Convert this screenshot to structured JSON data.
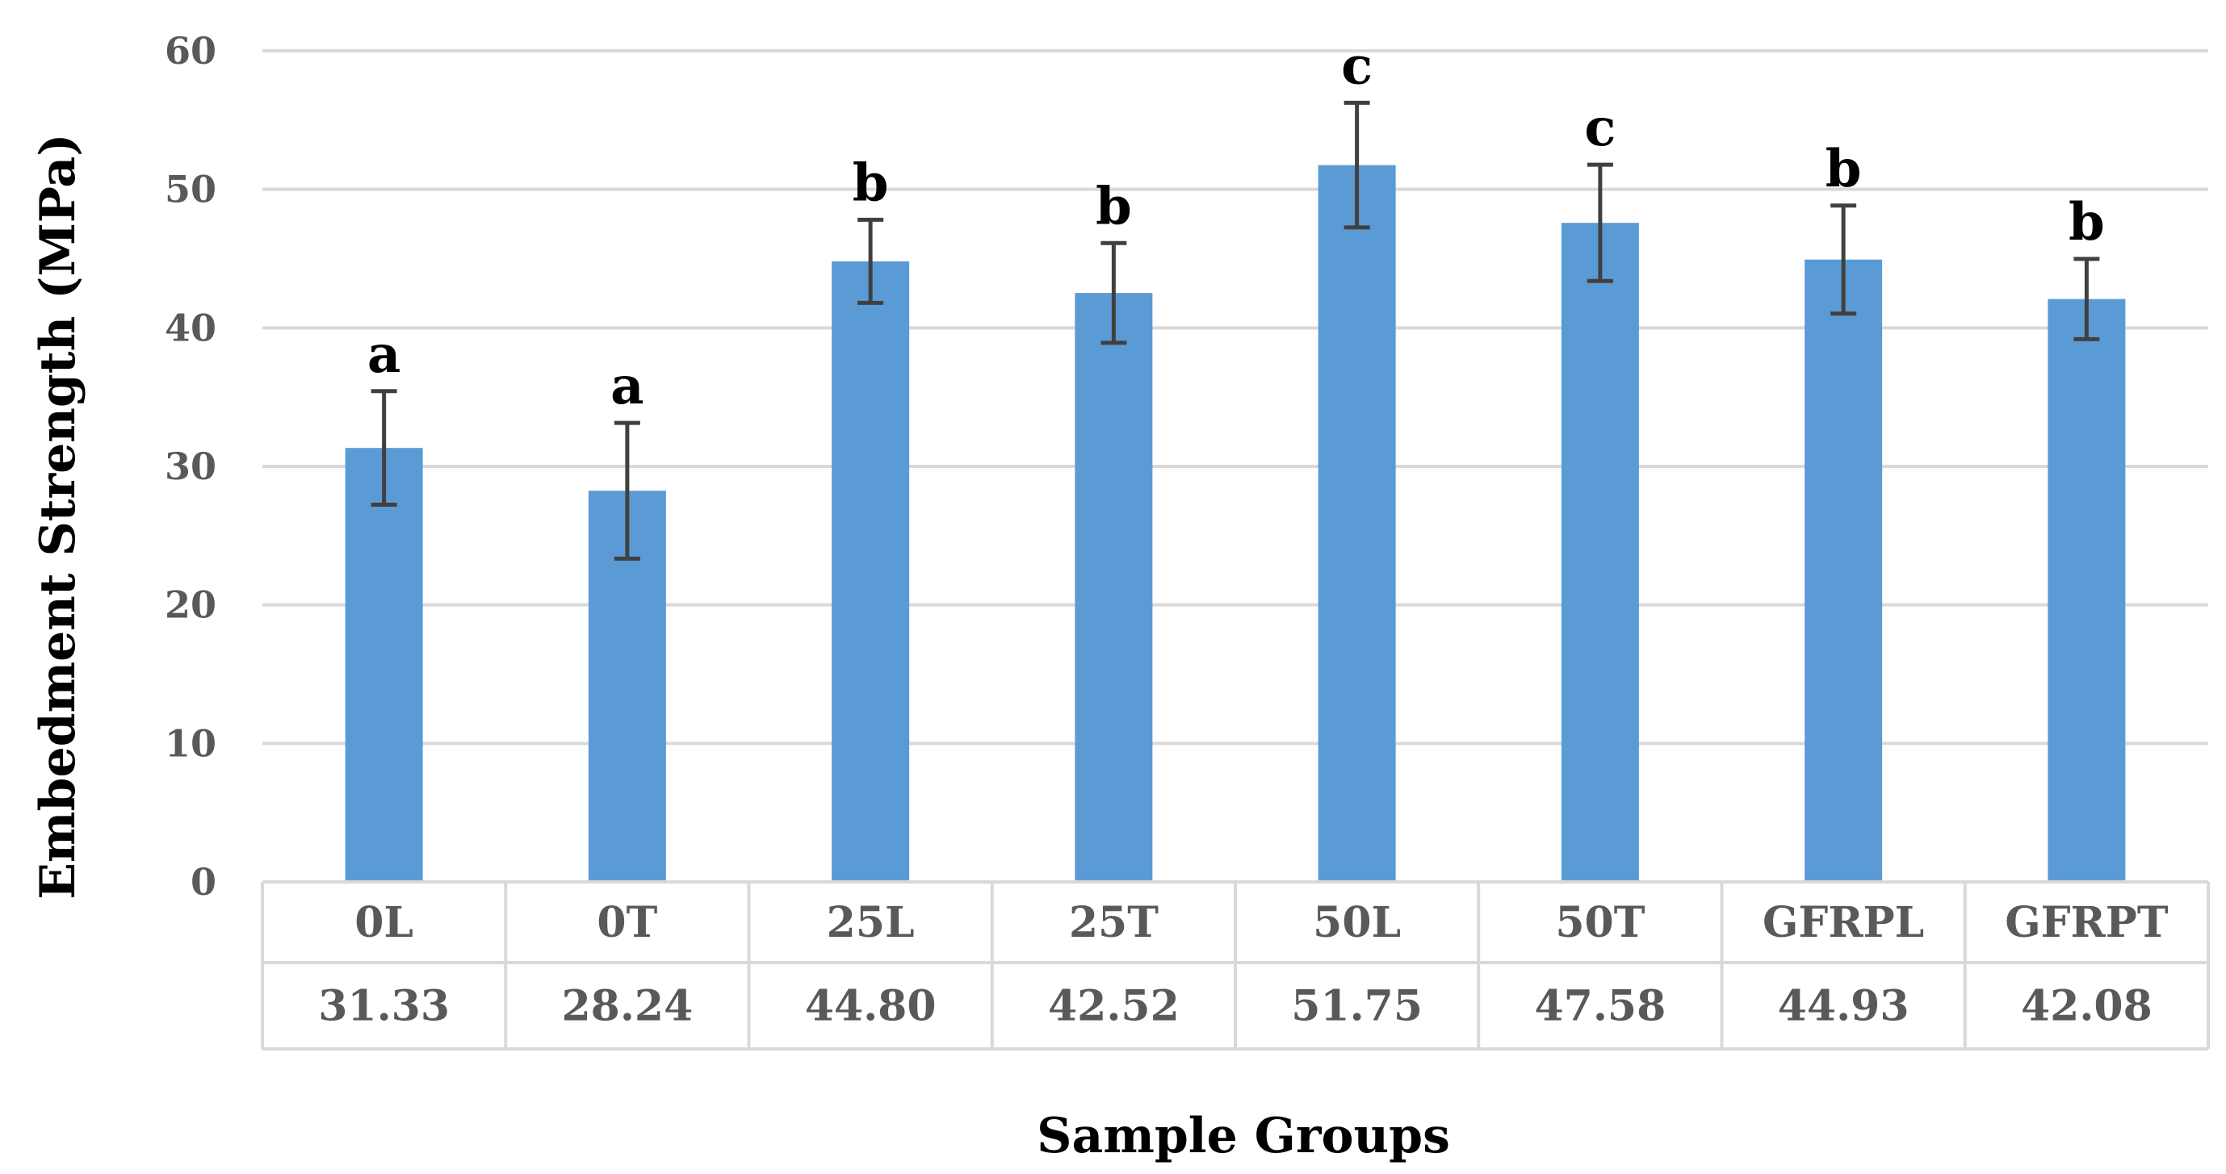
{
  "chart_data": {
    "type": "bar",
    "title": "",
    "xlabel": "Sample Groups",
    "ylabel": "Embedment Strength (MPa)",
    "ylim": [
      0,
      60
    ],
    "yticks": [
      0,
      10,
      20,
      30,
      40,
      50,
      60
    ],
    "grid": true,
    "legend": "none",
    "bar_color": "#5b9bd5",
    "categories": [
      "0L",
      "0T",
      "25L",
      "25T",
      "50L",
      "50T",
      "GFRPL",
      "GFRPT"
    ],
    "values": [
      31.33,
      28.24,
      44.8,
      42.52,
      51.75,
      47.58,
      44.93,
      42.08
    ],
    "value_labels": [
      "31.33",
      "28.24",
      "44.80",
      "42.52",
      "51.75",
      "47.58",
      "44.93",
      "42.08"
    ],
    "error": [
      4.1,
      4.9,
      3.0,
      3.6,
      4.5,
      4.2,
      3.9,
      2.9
    ],
    "significance": [
      "a",
      "a",
      "b",
      "b",
      "c",
      "c",
      "b",
      "b"
    ]
  }
}
